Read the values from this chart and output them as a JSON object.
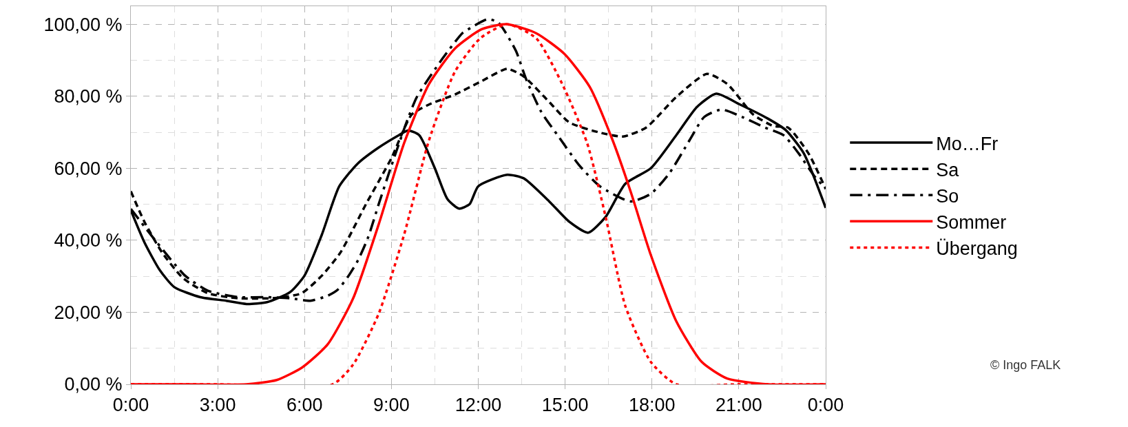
{
  "chart_data": {
    "type": "line",
    "xlim": [
      0,
      24
    ],
    "ylim": [
      0,
      105
    ],
    "xticks": [
      {
        "value": 0,
        "label": "0:00"
      },
      {
        "value": 3,
        "label": "3:00"
      },
      {
        "value": 6,
        "label": "6:00"
      },
      {
        "value": 9,
        "label": "9:00"
      },
      {
        "value": 12,
        "label": "12:00"
      },
      {
        "value": 15,
        "label": "15:00"
      },
      {
        "value": 18,
        "label": "18:00"
      },
      {
        "value": 21,
        "label": "21:00"
      },
      {
        "value": 24,
        "label": "0:00"
      }
    ],
    "yticks": [
      {
        "value": 0,
        "label": "0,00 %"
      },
      {
        "value": 20,
        "label": "20,00 %"
      },
      {
        "value": 40,
        "label": "40,00 %"
      },
      {
        "value": 60,
        "label": "60,00 %"
      },
      {
        "value": 80,
        "label": "80,00 %"
      },
      {
        "value": 100,
        "label": "100,00 %"
      }
    ],
    "grid": true,
    "legend": "right",
    "marker": "none",
    "annotations": [
      "© Ingo FALK"
    ],
    "series": [
      {
        "name": "Mo…Fr",
        "color": "#000000",
        "line_style": "solid",
        "x": [
          0,
          0.47,
          1,
          1.5,
          2.4,
          3.3,
          4,
          4.7,
          5.5,
          6,
          6.6,
          7.2,
          7.85,
          8.55,
          9.26,
          9.57,
          9.96,
          10.5,
          10.93,
          11.33,
          11.7,
          12,
          13,
          13.57,
          14.45,
          15.15,
          15.8,
          16.4,
          17.08,
          17.96,
          18.84,
          19.55,
          20.22,
          21.04,
          22,
          22.62,
          23.24,
          24
        ],
        "values": [
          48.3,
          39.4,
          31.7,
          27,
          24.2,
          23.2,
          22.3,
          22.8,
          25.6,
          30.2,
          41.6,
          55,
          61.4,
          65.7,
          69.2,
          70.5,
          69.2,
          60,
          51.5,
          48.8,
          50,
          55,
          58.2,
          57.2,
          50.8,
          45.1,
          42.1,
          46.5,
          55.7,
          60,
          69.2,
          77,
          80.7,
          77.7,
          73.8,
          70.6,
          64.2,
          49
        ]
      },
      {
        "name": "Sa",
        "color": "#000000",
        "line_style": "dashed",
        "x": [
          0,
          0.47,
          1.08,
          1.8,
          2.66,
          3.7,
          5.04,
          5.9,
          6.6,
          7.24,
          8.12,
          9,
          9.7,
          10.3,
          11.2,
          12.07,
          13,
          13.57,
          14.45,
          15.15,
          16.2,
          17,
          17.8,
          18.84,
          19.9,
          20.6,
          21.5,
          22.2,
          22.7,
          23.4,
          24
        ],
        "values": [
          53.6,
          45.1,
          36.6,
          29.5,
          25.3,
          23.9,
          24,
          25.3,
          30.2,
          36.6,
          50,
          62.8,
          74.9,
          77.7,
          80.5,
          84,
          87.6,
          85.5,
          78.4,
          72.7,
          69.9,
          68.8,
          71.3,
          79.8,
          86.2,
          83.4,
          74.9,
          71.7,
          71.3,
          64.2,
          54.3
        ]
      },
      {
        "name": "So",
        "color": "#000000",
        "line_style": "dashdot",
        "x": [
          0,
          0.9,
          1.87,
          2.66,
          3.7,
          4.7,
          5.5,
          6.2,
          6.8,
          7.15,
          7.5,
          7.85,
          8.2,
          8.56,
          9,
          9.52,
          9.88,
          10.76,
          11.45,
          11.72,
          12.33,
          12.7,
          13.3,
          13.65,
          14.18,
          14.8,
          15.5,
          16.2,
          17.26,
          17.96,
          18.6,
          19.3,
          19.8,
          20.4,
          21.13,
          21.9,
          22.54,
          23.06,
          23.6,
          24
        ],
        "values": [
          48.7,
          39.4,
          30.2,
          26,
          24.2,
          24.2,
          23.9,
          23.2,
          24.6,
          26.3,
          29.9,
          34.5,
          40.9,
          50,
          60.7,
          72.7,
          79.8,
          90.4,
          97.5,
          98.9,
          101.4,
          100.4,
          92.6,
          84.8,
          75.6,
          68.5,
          60.7,
          55,
          50.8,
          52.9,
          58.6,
          67.8,
          74.2,
          76.3,
          74.2,
          71.3,
          69.2,
          64.2,
          57.9,
          54.3
        ]
      },
      {
        "name": "Sommer",
        "color": "#ff0000",
        "line_style": "solid",
        "x": [
          0,
          2,
          4,
          5.04,
          5.92,
          6.8,
          7.68,
          8.56,
          9.44,
          10.3,
          11.2,
          12.12,
          13,
          14,
          14.97,
          15.85,
          16.64,
          17.26,
          17.96,
          18.84,
          19.72,
          20.6,
          22,
          24
        ],
        "values": [
          0,
          0,
          0,
          1.2,
          4.7,
          11.1,
          23.9,
          44.4,
          67,
          83.4,
          93.3,
          98.6,
          100,
          97.5,
          91.8,
          82.6,
          67.8,
          53.6,
          35.9,
          17.5,
          6.2,
          1.6,
          0,
          0
        ]
      },
      {
        "name": "Übergang",
        "color": "#ff0000",
        "line_style": "dotted",
        "x": [
          0,
          3,
          6.97,
          7.68,
          8.56,
          9.44,
          10.3,
          11.2,
          12.07,
          13,
          14,
          14.9,
          15.76,
          16.4,
          17.08,
          17.96,
          18.84,
          21,
          24
        ],
        "values": [
          0,
          0,
          0,
          5.5,
          19.6,
          41.6,
          67.8,
          86.9,
          96.1,
          100,
          96.1,
          83.4,
          67,
          46.5,
          21.7,
          6.2,
          0,
          0,
          0
        ]
      }
    ]
  }
}
